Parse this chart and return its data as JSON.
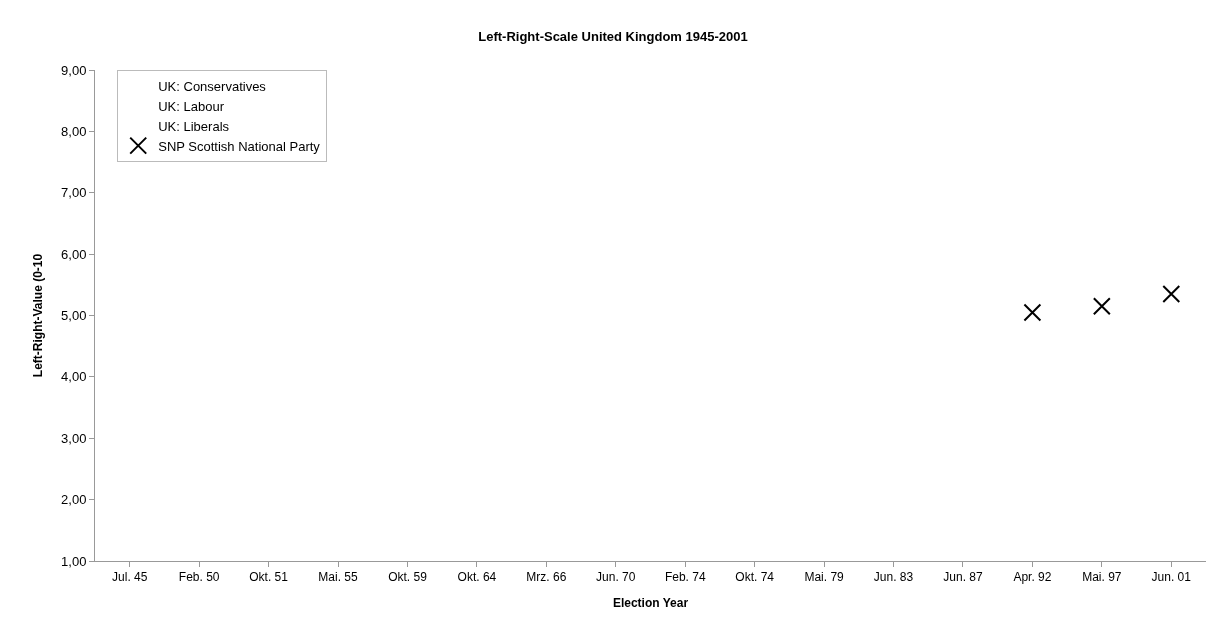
{
  "chart_data": {
    "type": "scatter",
    "title": "Left-Right-Scale United Kingdom 1945-2001",
    "xlabel": "Election Year",
    "ylabel": "Left-Right-Value (0-10",
    "categories": [
      "Jul. 45",
      "Feb. 50",
      "Okt. 51",
      "Mai. 55",
      "Okt. 59",
      "Okt. 64",
      "Mrz. 66",
      "Jun. 70",
      "Feb. 74",
      "Okt. 74",
      "Mai. 79",
      "Jun. 83",
      "Jun. 87",
      "Apr. 92",
      "Mai. 97",
      "Jun. 01"
    ],
    "series": [
      {
        "name": "UK: Conservatives",
        "marker": "none",
        "values": [
          null,
          null,
          null,
          null,
          null,
          null,
          null,
          null,
          null,
          null,
          null,
          null,
          null,
          null,
          null,
          null
        ]
      },
      {
        "name": "UK: Labour",
        "marker": "none",
        "values": [
          null,
          null,
          null,
          null,
          null,
          null,
          null,
          null,
          null,
          null,
          null,
          null,
          null,
          null,
          null,
          null
        ]
      },
      {
        "name": "UK: Liberals",
        "marker": "none",
        "values": [
          null,
          null,
          null,
          null,
          null,
          null,
          null,
          null,
          null,
          null,
          null,
          null,
          null,
          null,
          null,
          null
        ]
      },
      {
        "name": "SNP Scottish National Party",
        "color": "#000000",
        "marker": "cross",
        "values": [
          null,
          null,
          null,
          null,
          null,
          null,
          null,
          null,
          null,
          null,
          null,
          null,
          null,
          5.05,
          5.15,
          5.35
        ]
      }
    ],
    "ylim": [
      1,
      9
    ],
    "yticks": [
      {
        "value": 1,
        "label": "1,00"
      },
      {
        "value": 2,
        "label": "2,00"
      },
      {
        "value": 3,
        "label": "3,00"
      },
      {
        "value": 4,
        "label": "4,00"
      },
      {
        "value": 5,
        "label": "5,00"
      },
      {
        "value": 6,
        "label": "6,00"
      },
      {
        "value": 7,
        "label": "7,00"
      },
      {
        "value": 8,
        "label": "8,00"
      },
      {
        "value": 9,
        "label": "9,00"
      }
    ],
    "legend": "top left"
  }
}
